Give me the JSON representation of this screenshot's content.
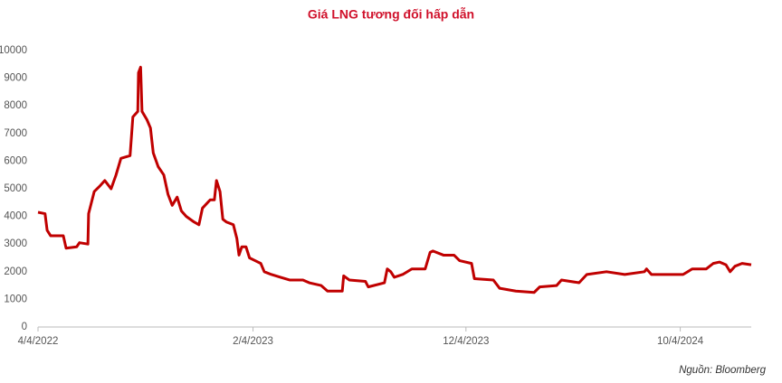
{
  "chart_data": {
    "type": "line",
    "title": "Giá LNG tương đối hấp dẫn",
    "source": "Nguồn: Bloomberg",
    "x": [
      "2022-04-04",
      "2022-04-14",
      "2022-04-17",
      "2022-04-22",
      "2022-05-10",
      "2022-05-14",
      "2022-05-29",
      "2022-06-02",
      "2022-06-14",
      "2022-06-15",
      "2022-06-23",
      "2022-07-01",
      "2022-07-08",
      "2022-07-17",
      "2022-07-24",
      "2022-07-31",
      "2022-08-13",
      "2022-08-17",
      "2022-08-24",
      "2022-08-25",
      "2022-08-28",
      "2022-08-30",
      "2022-09-06",
      "2022-09-11",
      "2022-09-15",
      "2022-09-22",
      "2022-09-30",
      "2022-10-06",
      "2022-10-12",
      "2022-10-19",
      "2022-10-25",
      "2022-11-01",
      "2022-11-12",
      "2022-11-19",
      "2022-11-24",
      "2022-12-05",
      "2022-12-11",
      "2022-12-14",
      "2022-12-19",
      "2022-12-23",
      "2022-12-28",
      "2023-01-07",
      "2023-01-12",
      "2023-01-15",
      "2023-01-19",
      "2023-01-25",
      "2023-01-30",
      "2023-02-07",
      "2023-02-15",
      "2023-02-20",
      "2023-03-02",
      "2023-03-15",
      "2023-03-28",
      "2023-04-16",
      "2023-04-25",
      "2023-05-12",
      "2023-05-21",
      "2023-06-11",
      "2023-06-13",
      "2023-06-21",
      "2023-07-14",
      "2023-07-18",
      "2023-08-10",
      "2023-08-14",
      "2023-08-19",
      "2023-08-24",
      "2023-09-05",
      "2023-09-18",
      "2023-10-07",
      "2023-10-14",
      "2023-10-18",
      "2023-11-02",
      "2023-11-17",
      "2023-11-25",
      "2023-12-12",
      "2023-12-16",
      "2024-01-12",
      "2024-01-21",
      "2024-02-13",
      "2024-03-10",
      "2024-03-18",
      "2024-04-11",
      "2024-04-18",
      "2024-05-13",
      "2024-05-24",
      "2024-06-21",
      "2024-07-17",
      "2024-08-14",
      "2024-08-17",
      "2024-08-24",
      "2024-10-08",
      "2024-10-21",
      "2024-11-10",
      "2024-11-20",
      "2024-11-29",
      "2024-12-08",
      "2024-12-14",
      "2024-12-21",
      "2024-12-31",
      "2025-01-13"
    ],
    "series": [
      {
        "color": "#c00000",
        "values": [
          4150,
          4100,
          3500,
          3300,
          3300,
          2850,
          2900,
          3050,
          3000,
          4100,
          4900,
          5100,
          5300,
          5000,
          5500,
          6100,
          6200,
          7600,
          7800,
          9200,
          9400,
          7800,
          7500,
          7200,
          6300,
          5800,
          5500,
          4800,
          4400,
          4700,
          4200,
          4000,
          3800,
          3700,
          4300,
          4600,
          4600,
          5300,
          4900,
          3900,
          3800,
          3700,
          3200,
          2600,
          2900,
          2900,
          2500,
          2400,
          2300,
          2000,
          1900,
          1800,
          1700,
          1700,
          1600,
          1500,
          1300,
          1300,
          1850,
          1700,
          1650,
          1450,
          1600,
          2100,
          2000,
          1800,
          1900,
          2100,
          2100,
          2700,
          2750,
          2600,
          2600,
          2400,
          2300,
          1750,
          1700,
          1400,
          1300,
          1250,
          1450,
          1500,
          1700,
          1600,
          1900,
          2000,
          1900,
          2000,
          2100,
          1900,
          1900,
          2100,
          2100,
          2300,
          2350,
          2250,
          2000,
          2200,
          2300,
          2250
        ]
      }
    ],
    "xlim": [
      "2022-04-04",
      "2025-01-13"
    ],
    "xticks": [
      {
        "value": "2022-04-04",
        "label": "4/4/2022"
      },
      {
        "value": "2023-02-04",
        "label": "2/4/2023"
      },
      {
        "value": "2023-12-04",
        "label": "12/4/2023"
      },
      {
        "value": "2024-10-04",
        "label": "10/4/2024"
      }
    ],
    "ylim": [
      0,
      10000
    ],
    "yticks": [
      0,
      1000,
      2000,
      3000,
      4000,
      5000,
      6000,
      7000,
      8000,
      9000,
      10000
    ],
    "grid": false
  }
}
